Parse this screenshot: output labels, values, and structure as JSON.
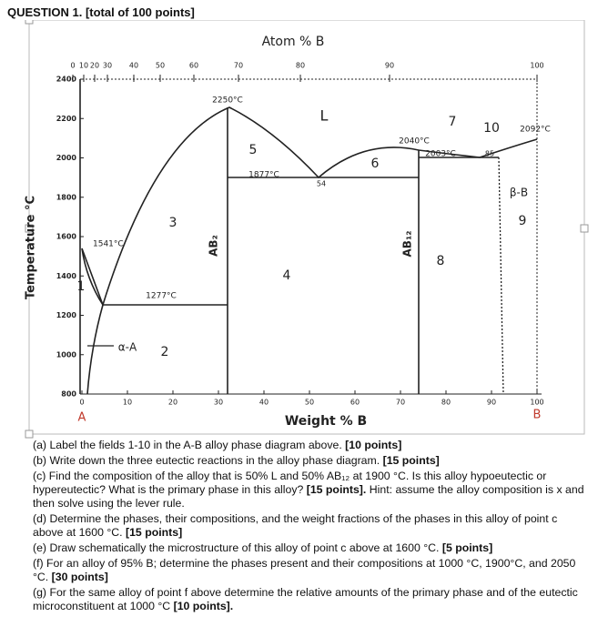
{
  "header": {
    "title": "QUESTION 1. [total of 100 points]"
  },
  "figure": {
    "top_axis_label": "Atom % B",
    "bottom_axis_label": "Weight % B",
    "y_axis_label": "Temperature °C",
    "top_ticks": [
      0,
      10,
      20,
      30,
      40,
      50,
      60,
      70,
      80,
      90,
      100
    ],
    "bottom_ticks": [
      0,
      10,
      20,
      30,
      40,
      50,
      60,
      70,
      80,
      90,
      100
    ],
    "y_ticks": [
      800,
      1000,
      1200,
      1400,
      1600,
      1800,
      2000,
      2200,
      2400
    ],
    "end_labels": [
      "A",
      "B"
    ],
    "temperatures": [
      "2250°C",
      "1877°C",
      "2040°C",
      "2003°C",
      "2092°C",
      "1541°C",
      "1277°C"
    ],
    "compositions": [
      "54",
      "85"
    ],
    "fields": [
      "1",
      "2",
      "3",
      "4",
      "5",
      "6",
      "7",
      "8",
      "9",
      "10"
    ],
    "phases": [
      "L",
      "α-A",
      "β-B",
      "AB₂",
      "AB₁₂"
    ]
  },
  "questions": [
    {
      "text": "(a) Label the fields 1-10 in the A-B alloy phase diagram above. ",
      "points": "[10 points]"
    },
    {
      "text": "(b) Write down the three eutectic reactions in the alloy phase diagram. ",
      "points": "[15 points]"
    },
    {
      "text": "(c) Find the composition of the alloy that is 50% L and 50% AB₁₂ at 1900 °C. Is this alloy hypoeutectic or hypereutectic? What is the primary phase in this alloy? ",
      "points": "[15 points].",
      "after": " Hint: assume the alloy composition is x and then solve using the lever rule."
    },
    {
      "text": "(d) Determine the phases, their compositions, and the weight fractions of the phases in this alloy of point c above at 1600 °C. ",
      "points": "[15 points]"
    },
    {
      "text": "(e) Draw schematically the microstructure of this alloy of point c above at 1600 °C. ",
      "points": "[5 points]"
    },
    {
      "text": "(f) For an alloy of 95% B; determine the phases present and their compositions at 1000 °C, 1900°C, and 2050 °C. ",
      "points": "[30 points]"
    },
    {
      "text": "(g) For the same alloy of point f above determine the relative amounts of the primary phase and of the eutectic microconstituent at 1000 °C ",
      "points": "[10 points]."
    }
  ]
}
